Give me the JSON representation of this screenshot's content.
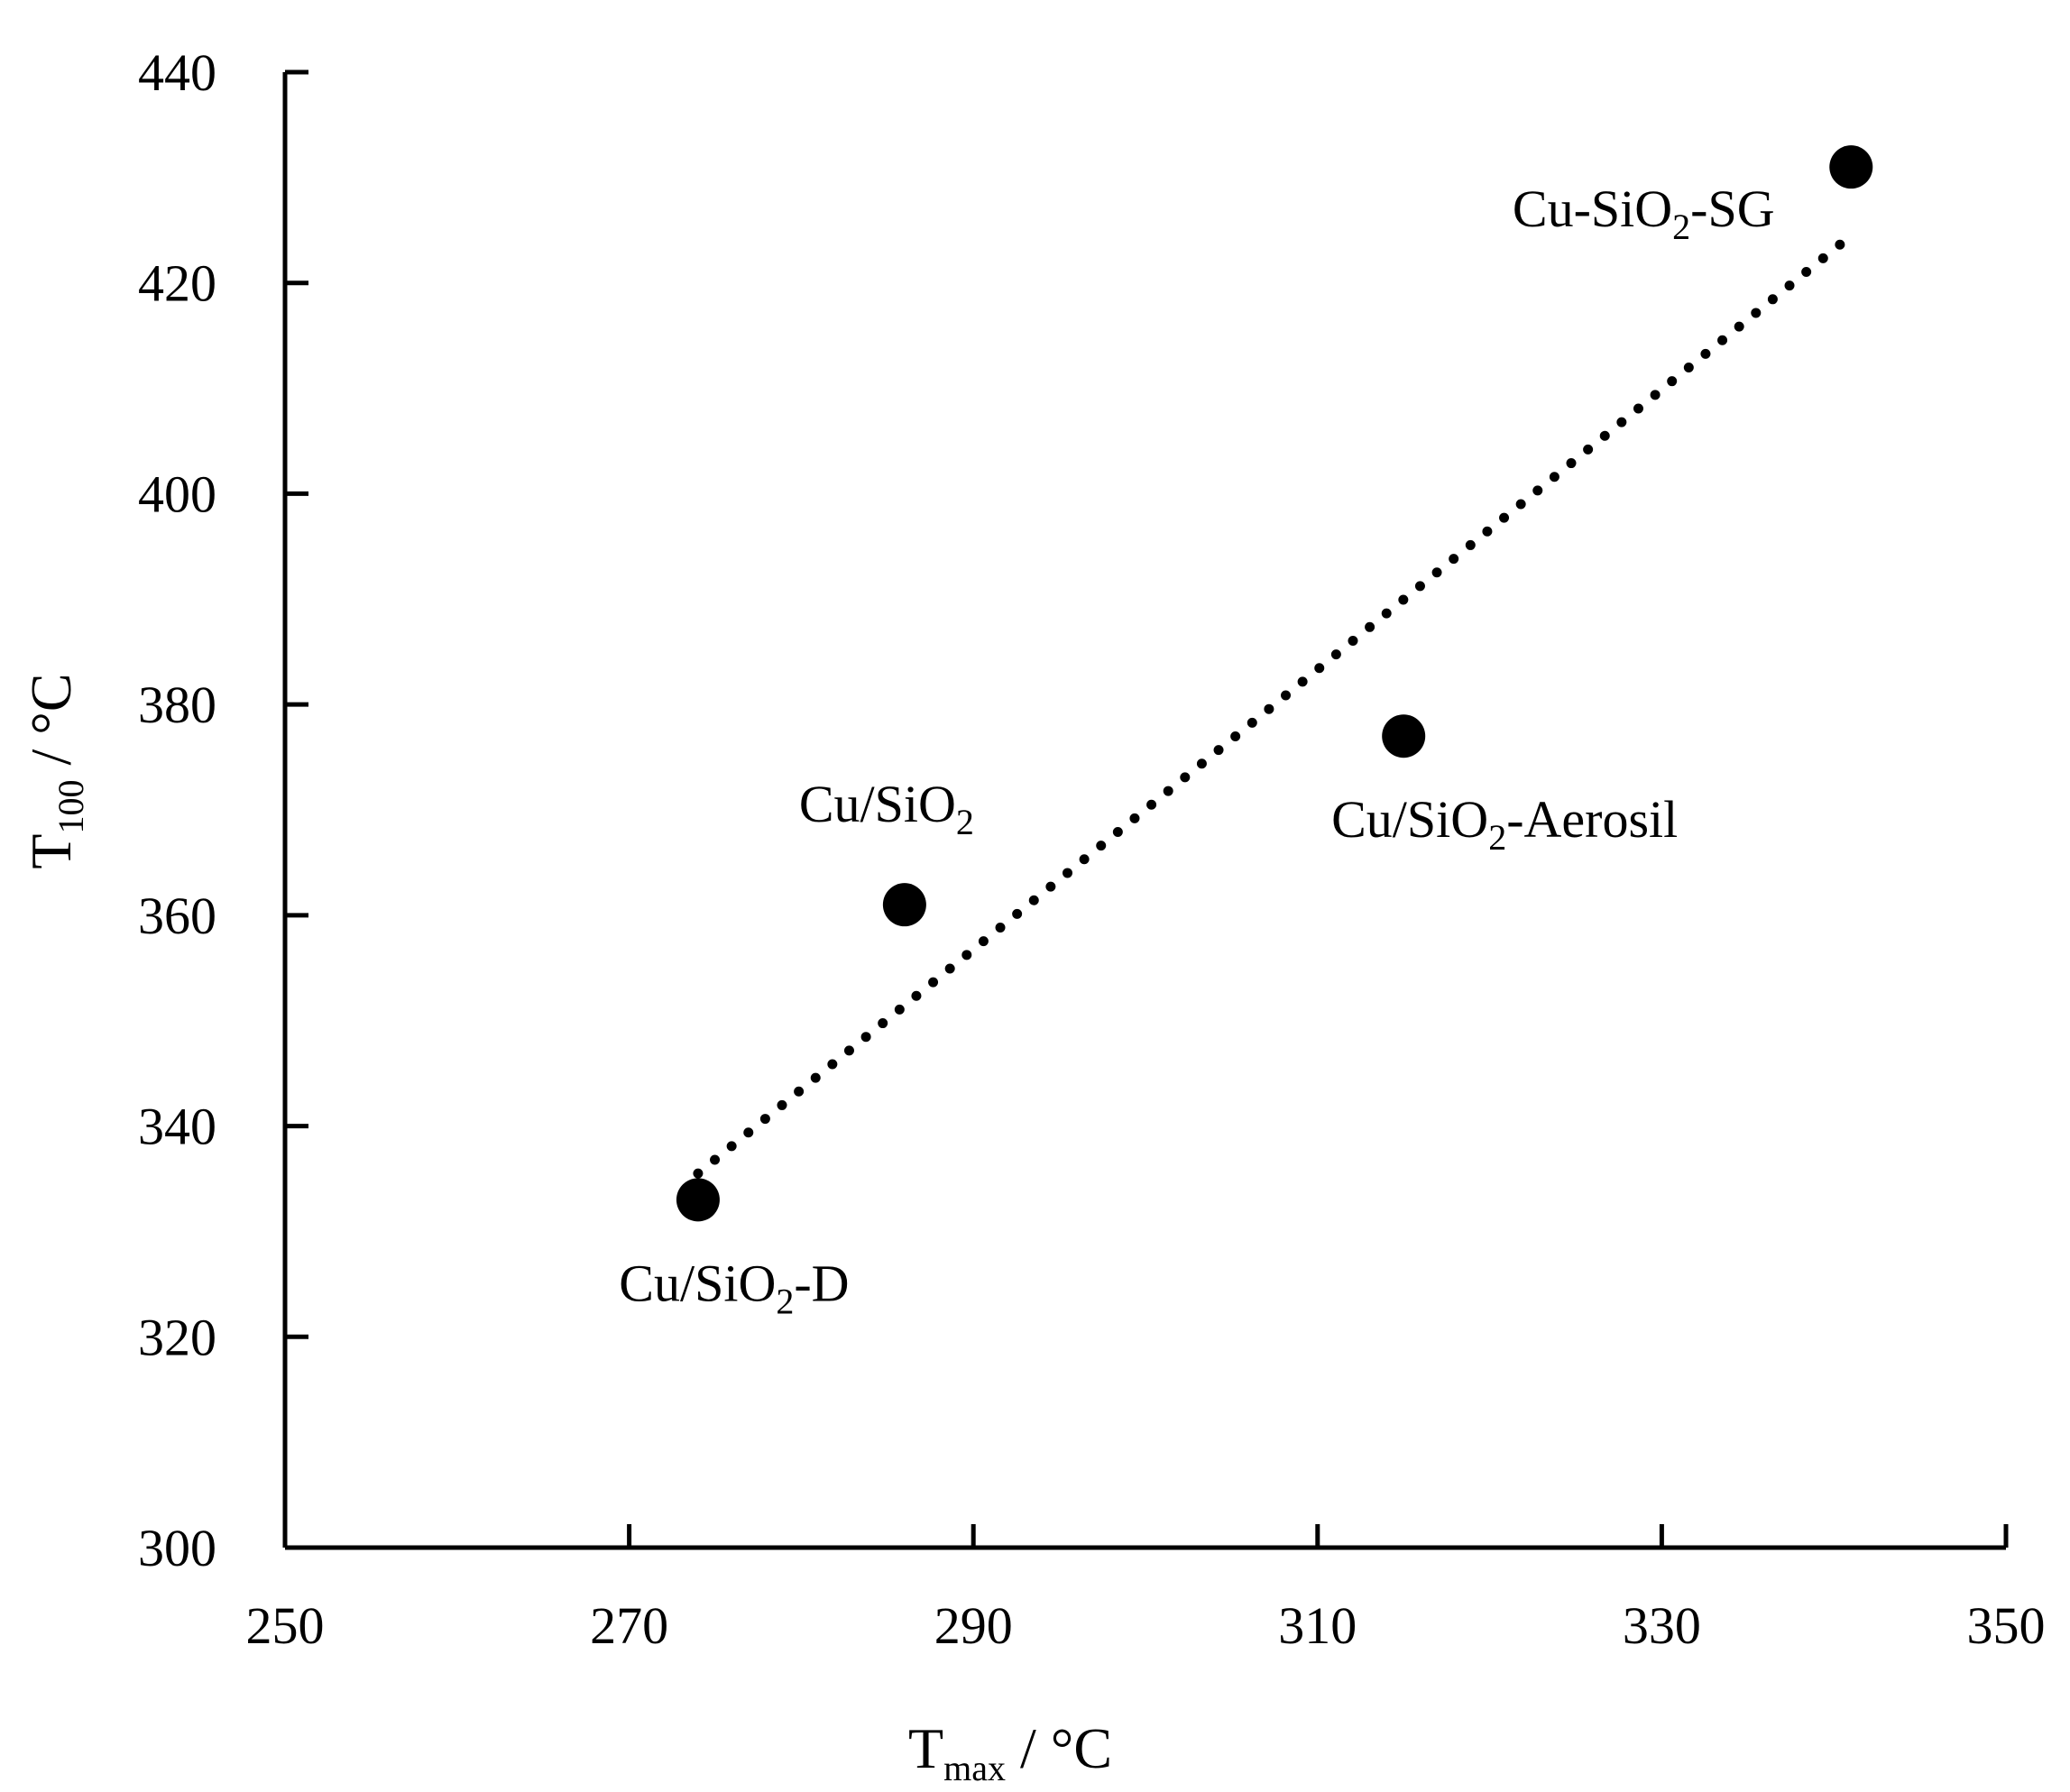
{
  "chart_data": {
    "type": "scatter",
    "title": "",
    "xlabel": {
      "main": "T",
      "sub": "max",
      "suffix": " / °C"
    },
    "ylabel": {
      "main": "T",
      "sub": "100",
      "suffix": " / °C"
    },
    "xlim": [
      250,
      350
    ],
    "ylim": [
      300,
      440
    ],
    "xticks": [
      250,
      270,
      290,
      310,
      330,
      350
    ],
    "yticks": [
      300,
      320,
      340,
      360,
      380,
      400,
      420,
      440
    ],
    "grid": false,
    "points": [
      {
        "label": {
          "main": "Cu/SiO",
          "sub": "2",
          "suffix": ""
        },
        "x": 286,
        "y": 361,
        "label_pos": "above"
      },
      {
        "label": {
          "main": "Cu/SiO",
          "sub": "2",
          "suffix": "-D"
        },
        "x": 274,
        "y": 333,
        "label_pos": "below"
      },
      {
        "label": {
          "main": "Cu/SiO",
          "sub": "2",
          "suffix": "-Aerosil"
        },
        "x": 315,
        "y": 377,
        "label_pos": "below"
      },
      {
        "label": {
          "main": "Cu-SiO",
          "sub": "2",
          "suffix": "-SG"
        },
        "x": 341,
        "y": 431,
        "label_pos": "below-left"
      }
    ],
    "trendline": {
      "style": "dotted",
      "x": [
        274,
        341
      ],
      "y": [
        335.5,
        424.5
      ]
    },
    "colors": {
      "marker": "#000000",
      "axis": "#000000"
    }
  }
}
